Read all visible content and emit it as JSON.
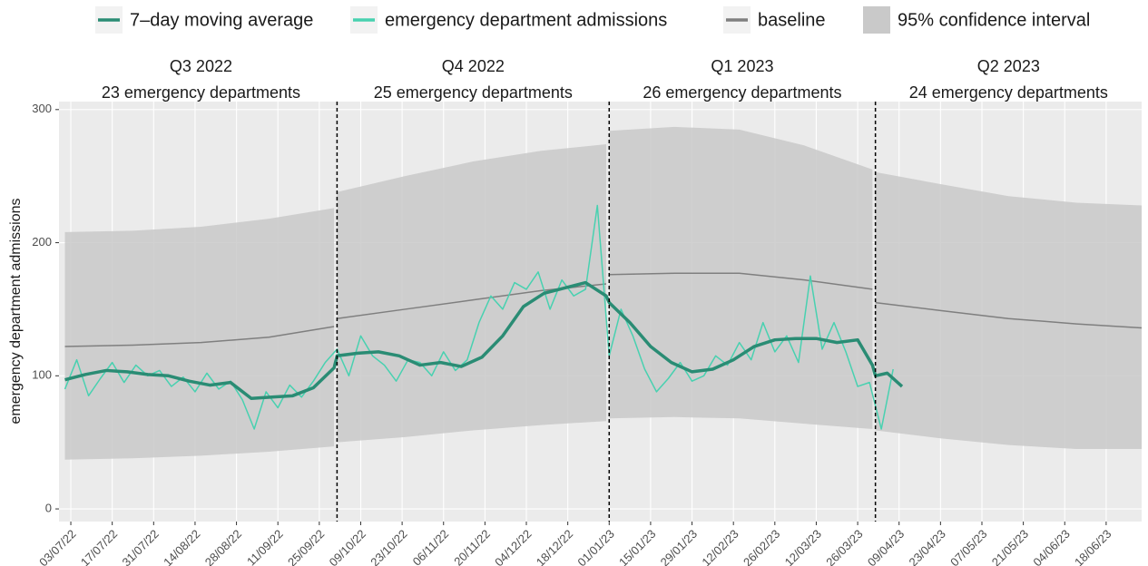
{
  "chart_data": {
    "type": "line",
    "ylabel": "emergency department admissions",
    "xlim": [
      "2022-06-29",
      "2023-06-30"
    ],
    "ylim": [
      -9.5,
      306
    ],
    "yticks": [
      0,
      100,
      200,
      300
    ],
    "xticks": [
      {
        "value": "2022-07-03",
        "label": "03/07/22"
      },
      {
        "value": "2022-07-17",
        "label": "17/07/22"
      },
      {
        "value": "2022-07-31",
        "label": "31/07/22"
      },
      {
        "value": "2022-08-14",
        "label": "14/08/22"
      },
      {
        "value": "2022-08-28",
        "label": "28/08/22"
      },
      {
        "value": "2022-09-11",
        "label": "11/09/22"
      },
      {
        "value": "2022-09-25",
        "label": "25/09/22"
      },
      {
        "value": "2022-10-09",
        "label": "09/10/22"
      },
      {
        "value": "2022-10-23",
        "label": "23/10/22"
      },
      {
        "value": "2022-11-06",
        "label": "06/11/22"
      },
      {
        "value": "2022-11-20",
        "label": "20/11/22"
      },
      {
        "value": "2022-12-04",
        "label": "04/12/22"
      },
      {
        "value": "2022-12-18",
        "label": "18/12/22"
      },
      {
        "value": "2023-01-01",
        "label": "01/01/23"
      },
      {
        "value": "2023-01-15",
        "label": "15/01/23"
      },
      {
        "value": "2023-01-29",
        "label": "29/01/23"
      },
      {
        "value": "2023-02-12",
        "label": "12/02/23"
      },
      {
        "value": "2023-02-26",
        "label": "26/02/23"
      },
      {
        "value": "2023-03-12",
        "label": "12/03/23"
      },
      {
        "value": "2023-03-26",
        "label": "26/03/23"
      },
      {
        "value": "2023-04-09",
        "label": "09/04/23"
      },
      {
        "value": "2023-04-23",
        "label": "23/04/23"
      },
      {
        "value": "2023-05-07",
        "label": "07/05/23"
      },
      {
        "value": "2023-05-21",
        "label": "21/05/23"
      },
      {
        "value": "2023-06-04",
        "label": "04/06/23"
      },
      {
        "value": "2023-06-18",
        "label": "18/06/23"
      }
    ],
    "grid": true,
    "baseline": {
      "name": "baseline",
      "color": "#7f7f7f"
    },
    "confidence_band": {
      "name": "95% confidence interval",
      "color": "#c9c9c9"
    },
    "periods": [
      {
        "start": "2022-07-01",
        "label": "Q3 2022",
        "subtitle": "23 emergency departments",
        "x": [
          "2022-07-01",
          "2022-07-24",
          "2022-08-16",
          "2022-09-08",
          "2022-09-30"
        ],
        "baseline": [
          122,
          123,
          125,
          129,
          137
        ],
        "lower": [
          37,
          38,
          40,
          43,
          47
        ],
        "upper": [
          208,
          209,
          212,
          218,
          226
        ]
      },
      {
        "start": "2022-10-01",
        "label": "Q4 2022",
        "subtitle": "25 emergency departments",
        "x": [
          "2022-10-01",
          "2022-10-24",
          "2022-11-16",
          "2022-12-09",
          "2022-12-31"
        ],
        "baseline": [
          143,
          150,
          157,
          164,
          169
        ],
        "lower": [
          50,
          54,
          59,
          63,
          66
        ],
        "upper": [
          238,
          250,
          261,
          269,
          274
        ]
      },
      {
        "start": "2023-01-01",
        "label": "Q1 2023",
        "subtitle": "26 emergency departments",
        "x": [
          "2023-01-01",
          "2023-01-23",
          "2023-02-14",
          "2023-03-08",
          "2023-03-31"
        ],
        "baseline": [
          176,
          177,
          177,
          172,
          165
        ],
        "lower": [
          68,
          69,
          68,
          64,
          60
        ],
        "upper": [
          284,
          287,
          285,
          273,
          255
        ]
      },
      {
        "start": "2023-04-01",
        "label": "Q2 2023",
        "subtitle": "24 emergency departments",
        "x": [
          "2023-04-01",
          "2023-04-23",
          "2023-05-16",
          "2023-06-08",
          "2023-06-30"
        ],
        "baseline": [
          155,
          149,
          143,
          139,
          136
        ],
        "lower": [
          59,
          53,
          48,
          45,
          45
        ],
        "upper": [
          253,
          244,
          235,
          230,
          228
        ]
      }
    ],
    "series": [
      {
        "name": "7–day moving average",
        "color": "#2a8c74",
        "x": [
          "2022-07-01",
          "2022-07-08",
          "2022-07-15",
          "2022-07-22",
          "2022-07-29",
          "2022-08-05",
          "2022-08-12",
          "2022-08-19",
          "2022-08-26",
          "2022-09-02",
          "2022-09-09",
          "2022-09-16",
          "2022-09-23",
          "2022-09-30",
          "2022-10-01",
          "2022-10-08",
          "2022-10-15",
          "2022-10-22",
          "2022-10-29",
          "2022-11-05",
          "2022-11-12",
          "2022-11-19",
          "2022-11-26",
          "2022-12-03",
          "2022-12-10",
          "2022-12-17",
          "2022-12-24",
          "2022-12-31",
          "2023-01-01",
          "2023-01-08",
          "2023-01-15",
          "2023-01-22",
          "2023-01-29",
          "2023-02-05",
          "2023-02-12",
          "2023-02-19",
          "2023-02-26",
          "2023-03-05",
          "2023-03-12",
          "2023-03-19",
          "2023-03-26",
          "2023-03-31",
          "2023-04-01",
          "2023-04-05",
          "2023-04-10"
        ],
        "values": [
          97,
          101,
          104,
          103,
          101,
          100,
          96,
          93,
          95,
          83,
          84,
          85,
          91,
          106,
          115,
          117,
          118,
          115,
          108,
          110,
          107,
          114,
          130,
          152,
          162,
          166,
          170,
          160,
          155,
          140,
          122,
          110,
          103,
          105,
          112,
          122,
          127,
          128,
          128,
          125,
          127,
          108,
          100,
          102,
          92
        ]
      },
      {
        "name": "emergency department admissions",
        "color": "#48d1b0",
        "x": [
          "2022-07-01",
          "2022-07-05",
          "2022-07-09",
          "2022-07-13",
          "2022-07-17",
          "2022-07-21",
          "2022-07-25",
          "2022-07-29",
          "2022-08-02",
          "2022-08-06",
          "2022-08-10",
          "2022-08-14",
          "2022-08-18",
          "2022-08-22",
          "2022-08-26",
          "2022-08-30",
          "2022-09-03",
          "2022-09-07",
          "2022-09-11",
          "2022-09-15",
          "2022-09-19",
          "2022-09-23",
          "2022-09-27",
          "2022-10-01",
          "2022-10-05",
          "2022-10-09",
          "2022-10-13",
          "2022-10-17",
          "2022-10-21",
          "2022-10-25",
          "2022-10-29",
          "2022-11-02",
          "2022-11-06",
          "2022-11-10",
          "2022-11-14",
          "2022-11-18",
          "2022-11-22",
          "2022-11-26",
          "2022-11-30",
          "2022-12-04",
          "2022-12-08",
          "2022-12-12",
          "2022-12-16",
          "2022-12-20",
          "2022-12-24",
          "2022-12-28",
          "2023-01-01",
          "2023-01-05",
          "2023-01-09",
          "2023-01-13",
          "2023-01-17",
          "2023-01-21",
          "2023-01-25",
          "2023-01-29",
          "2023-02-02",
          "2023-02-06",
          "2023-02-10",
          "2023-02-14",
          "2023-02-18",
          "2023-02-22",
          "2023-02-26",
          "2023-03-02",
          "2023-03-06",
          "2023-03-10",
          "2023-03-14",
          "2023-03-18",
          "2023-03-22",
          "2023-03-26",
          "2023-03-30",
          "2023-04-03",
          "2023-04-07"
        ],
        "values": [
          90,
          112,
          85,
          98,
          110,
          95,
          108,
          100,
          104,
          92,
          99,
          88,
          102,
          90,
          96,
          82,
          60,
          88,
          76,
          93,
          84,
          96,
          110,
          120,
          100,
          130,
          115,
          108,
          96,
          112,
          110,
          100,
          118,
          104,
          112,
          140,
          160,
          150,
          170,
          165,
          178,
          150,
          172,
          160,
          165,
          228,
          115,
          150,
          130,
          105,
          88,
          98,
          110,
          96,
          100,
          115,
          108,
          125,
          112,
          140,
          118,
          130,
          110,
          175,
          120,
          140,
          118,
          92,
          95,
          60,
          105
        ]
      }
    ]
  }
}
